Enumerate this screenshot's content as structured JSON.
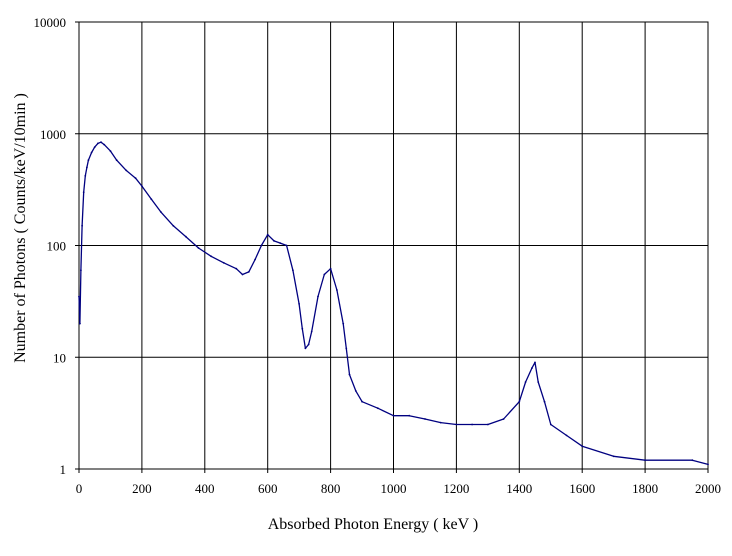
{
  "chart_data": {
    "type": "line",
    "title": "",
    "xlabel": "Absorbed Photon Energy ( keV )",
    "ylabel": "Number of Photons ( Counts/keV/10min )",
    "xlim": [
      0,
      2000
    ],
    "ylim": [
      1,
      10000
    ],
    "y_scale": "log",
    "grid": true,
    "legend": "none",
    "x_ticks": [
      0,
      200,
      400,
      600,
      800,
      1000,
      1200,
      1400,
      1600,
      1800,
      2000
    ],
    "y_ticks": [
      1,
      10,
      100,
      1000,
      10000
    ],
    "x_tick_labels": [
      "0",
      "200",
      "400",
      "600",
      "800",
      "1000",
      "1200",
      "1400",
      "1600",
      "1800",
      "2000"
    ],
    "y_tick_labels": [
      "1",
      "10",
      "100",
      "1000",
      "10000"
    ],
    "line_color": "#000080",
    "series": [
      {
        "x": [
          0,
          3,
          6,
          10,
          15,
          20,
          25,
          30,
          40,
          50,
          60,
          70,
          80,
          100,
          120,
          150,
          180,
          200,
          230,
          260,
          300,
          340,
          380,
          420,
          460,
          500,
          520,
          540,
          560,
          580,
          600,
          620,
          640,
          660,
          680,
          700,
          710,
          720,
          730,
          740,
          760,
          780,
          800,
          820,
          840,
          850,
          860,
          880,
          900,
          950,
          1000,
          1050,
          1100,
          1150,
          1200,
          1250,
          1300,
          1350,
          1400,
          1420,
          1440,
          1450,
          1460,
          1480,
          1500,
          1550,
          1600,
          1700,
          1800,
          1950,
          2000
        ],
        "y": [
          35,
          20,
          60,
          150,
          300,
          420,
          500,
          580,
          680,
          760,
          820,
          840,
          800,
          700,
          580,
          470,
          400,
          340,
          260,
          200,
          150,
          120,
          95,
          80,
          70,
          62,
          55,
          58,
          75,
          100,
          125,
          110,
          105,
          100,
          60,
          30,
          18,
          12,
          13,
          17,
          35,
          55,
          62,
          40,
          20,
          12,
          7,
          5,
          4,
          3.5,
          3,
          3,
          2.8,
          2.6,
          2.5,
          2.5,
          2.5,
          2.8,
          4,
          6,
          8,
          9,
          6,
          4,
          2.5,
          2,
          1.6,
          1.3,
          1.2,
          1.2,
          1.1
        ]
      }
    ]
  }
}
